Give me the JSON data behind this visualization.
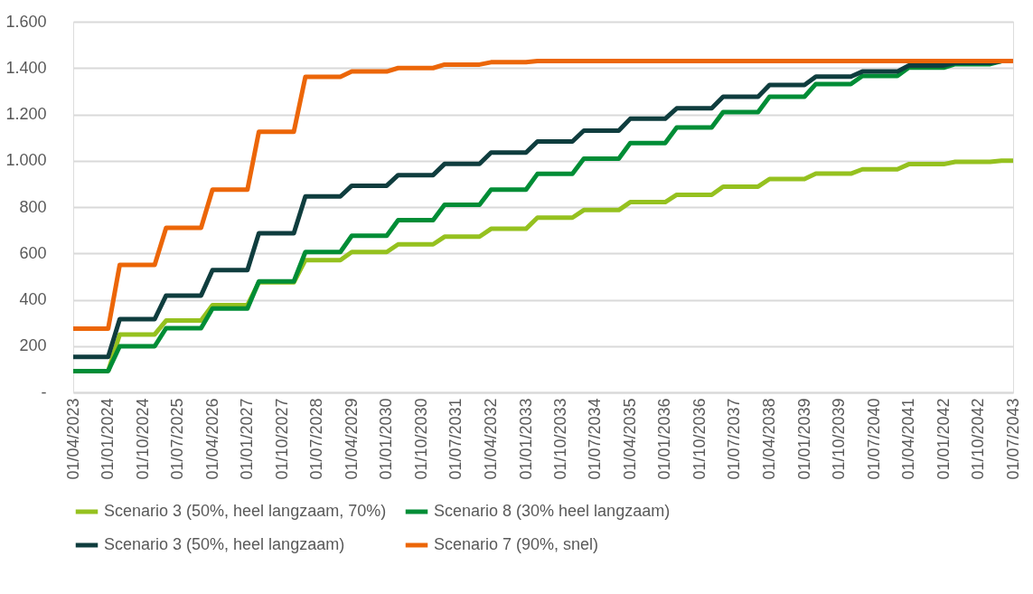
{
  "chart_data": {
    "type": "line",
    "x": [
      "2023-04",
      "2024-01",
      "2024-04",
      "2025-01",
      "2025-04",
      "2026-01",
      "2026-04",
      "2027-01",
      "2027-04",
      "2028-01",
      "2028-04",
      "2029-01",
      "2029-04",
      "2030-01",
      "2030-04",
      "2031-01",
      "2031-04",
      "2032-01",
      "2032-04",
      "2033-01",
      "2033-04",
      "2034-01",
      "2034-04",
      "2035-01",
      "2035-04",
      "2036-01",
      "2036-04",
      "2037-01",
      "2037-04",
      "2038-01",
      "2038-04",
      "2039-01",
      "2039-04",
      "2040-01",
      "2040-04",
      "2041-01",
      "2041-04",
      "2042-01",
      "2042-04",
      "2043-01",
      "2043-04",
      "2043-07"
    ],
    "series": [
      {
        "name": "Scenario 3 (50%, heel langzaam, 70%)",
        "color": "#95c11f",
        "values": [
          null,
          92,
          250,
          250,
          310,
          310,
          377,
          377,
          475,
          475,
          571,
          571,
          606,
          606,
          639,
          639,
          672,
          672,
          706,
          706,
          754,
          754,
          787,
          787,
          821,
          821,
          853,
          853,
          888,
          888,
          921,
          921,
          944,
          944,
          963,
          963,
          985,
          985,
          995,
          995,
          1000,
          1000
        ]
      },
      {
        "name": "Scenario 8 (30% heel langzaam)",
        "color": "#008d36",
        "values": [
          92,
          92,
          199,
          199,
          277,
          277,
          362,
          362,
          479,
          479,
          606,
          606,
          676,
          676,
          743,
          743,
          810,
          810,
          875,
          875,
          943,
          943,
          1009,
          1009,
          1076,
          1076,
          1143,
          1143,
          1210,
          1210,
          1276,
          1276,
          1331,
          1331,
          1366,
          1366,
          1402,
          1402,
          1417,
          1417,
          1430,
          null
        ]
      },
      {
        "name": "Scenario 3 (50%, heel langzaam)",
        "color": "#0f3d3e",
        "values": [
          153,
          153,
          316,
          316,
          418,
          418,
          528,
          528,
          687,
          687,
          846,
          846,
          892,
          892,
          938,
          938,
          986,
          986,
          1035,
          1035,
          1083,
          1083,
          1130,
          1130,
          1181,
          1181,
          1226,
          1226,
          1276,
          1276,
          1327,
          1327,
          1363,
          1363,
          1385,
          1385,
          1411,
          1411,
          1422,
          1422,
          1430,
          null
        ]
      },
      {
        "name": "Scenario 7 (90%, snel)",
        "color": "#ec6608",
        "values": [
          275,
          275,
          550,
          550,
          710,
          710,
          875,
          875,
          1125,
          1125,
          1362,
          1362,
          1385,
          1385,
          1400,
          1400,
          1415,
          1415,
          1425,
          1425,
          1430,
          1430,
          1430,
          1430,
          1430,
          1430,
          1430,
          1430,
          1430,
          1430,
          1430,
          1430,
          1430,
          1430,
          1430,
          1430,
          1430,
          1430,
          1430,
          1430,
          1430,
          1430
        ]
      }
    ],
    "xlim": [
      "2023-04",
      "2043-07"
    ],
    "xticks": [
      {
        "value": "2023-04",
        "label": "01/04/2023"
      },
      {
        "value": "2024-01",
        "label": "01/01/2024"
      },
      {
        "value": "2024-10",
        "label": "01/10/2024"
      },
      {
        "value": "2025-07",
        "label": "01/07/2025"
      },
      {
        "value": "2026-04",
        "label": "01/04/2026"
      },
      {
        "value": "2027-01",
        "label": "01/01/2027"
      },
      {
        "value": "2027-10",
        "label": "01/10/2027"
      },
      {
        "value": "2028-07",
        "label": "01/07/2028"
      },
      {
        "value": "2029-04",
        "label": "01/04/2029"
      },
      {
        "value": "2030-01",
        "label": "01/01/2030"
      },
      {
        "value": "2030-10",
        "label": "01/10/2030"
      },
      {
        "value": "2031-07",
        "label": "01/07/2031"
      },
      {
        "value": "2032-04",
        "label": "01/04/2032"
      },
      {
        "value": "2033-01",
        "label": "01/01/2033"
      },
      {
        "value": "2033-10",
        "label": "01/10/2033"
      },
      {
        "value": "2034-07",
        "label": "01/07/2034"
      },
      {
        "value": "2035-04",
        "label": "01/04/2035"
      },
      {
        "value": "2036-01",
        "label": "01/01/2036"
      },
      {
        "value": "2036-10",
        "label": "01/10/2036"
      },
      {
        "value": "2037-07",
        "label": "01/07/2037"
      },
      {
        "value": "2038-04",
        "label": "01/04/2038"
      },
      {
        "value": "2039-01",
        "label": "01/01/2039"
      },
      {
        "value": "2039-10",
        "label": "01/10/2039"
      },
      {
        "value": "2040-07",
        "label": "01/07/2040"
      },
      {
        "value": "2041-04",
        "label": "01/04/2041"
      },
      {
        "value": "2042-01",
        "label": "01/01/2042"
      },
      {
        "value": "2042-10",
        "label": "01/10/2042"
      },
      {
        "value": "2043-07",
        "label": "01/07/2043"
      }
    ],
    "ylim": [
      0,
      1600
    ],
    "yticks": [
      {
        "value": 0,
        "label": "-"
      },
      {
        "value": 200,
        "label": "200"
      },
      {
        "value": 400,
        "label": "400"
      },
      {
        "value": 600,
        "label": "600"
      },
      {
        "value": 800,
        "label": "800"
      },
      {
        "value": 1000,
        "label": "1.000"
      },
      {
        "value": 1200,
        "label": "1.200"
      },
      {
        "value": 1400,
        "label": "1.400"
      },
      {
        "value": 1600,
        "label": "1.600"
      }
    ],
    "grid": "y",
    "legend": "bottom",
    "marker": "none",
    "line_style": "solid"
  }
}
